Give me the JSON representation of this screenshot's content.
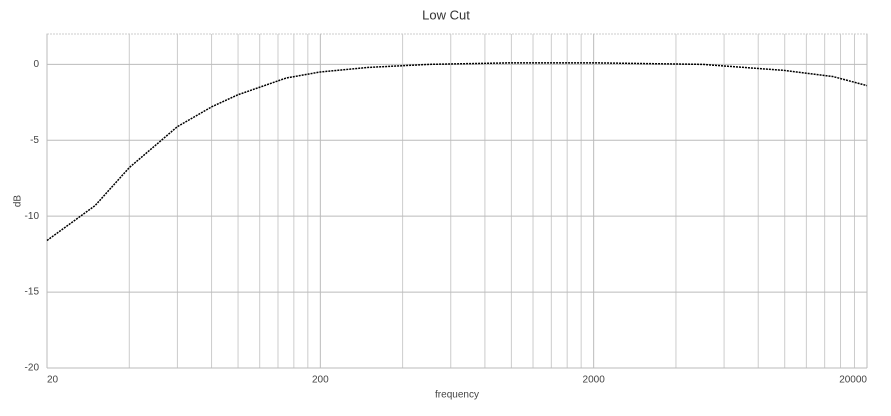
{
  "chart_data": {
    "type": "line",
    "title": "Low Cut",
    "x_label": "frequency",
    "y_label": "dB",
    "x": [
      20,
      30,
      40,
      60,
      80,
      100,
      150,
      200,
      300,
      500,
      1000,
      2000,
      5000,
      10000,
      15000,
      20000
    ],
    "series": [
      {
        "name": "Low Cut",
        "color": "#000000",
        "values": [
          -11.6,
          -9.3,
          -6.8,
          -4.1,
          -2.8,
          -2.0,
          -0.9,
          -0.5,
          -0.2,
          0.0,
          0.1,
          0.1,
          0.0,
          -0.4,
          -0.8,
          -1.4
        ]
      }
    ],
    "xlim": [
      20,
      20000
    ],
    "xticks": [
      20,
      200,
      2000,
      20000
    ],
    "x_log": true,
    "minor_grid": true,
    "ylim": [
      -20,
      2
    ],
    "yticks": [
      -20,
      -15,
      -10,
      -5,
      0
    ],
    "grid": true
  }
}
